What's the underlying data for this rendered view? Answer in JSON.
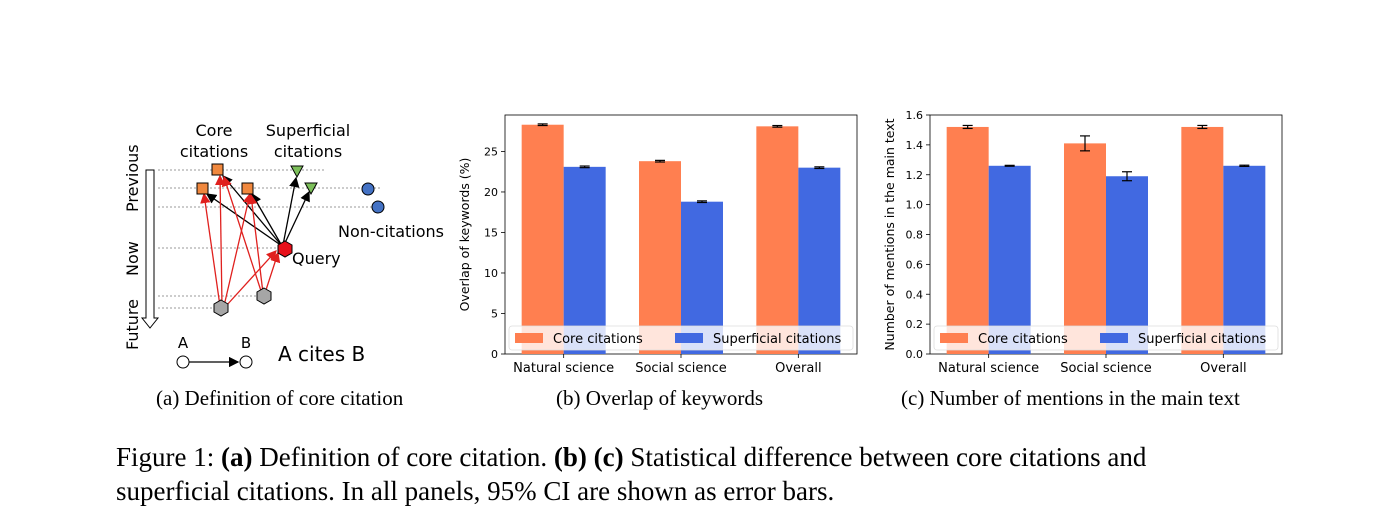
{
  "panel_a": {
    "labels": {
      "core": [
        "Core",
        "citations"
      ],
      "superficial": [
        "Superficial",
        "citations"
      ],
      "noncitations": "Non-citations",
      "query": "Query",
      "previous": "Previous",
      "now": "Now",
      "future": "Future",
      "node_a": "A",
      "node_b": "B",
      "a_cites_b": "A cites B"
    },
    "caption": "(a) Definition of core citation",
    "colors": {
      "core": "#f0883e",
      "superficial": "#7cbf5a",
      "noncitation": "#4472c4",
      "query": "#e8101a",
      "future": "#a6a6a6",
      "red_edge": "#e0201e"
    }
  },
  "panel_b": {
    "caption": "(b) Overlap of keywords"
  },
  "panel_c": {
    "caption": "(c) Number of mentions in the main text"
  },
  "figure_caption": {
    "prefix": "Figure 1:",
    "a": "(a)",
    "a_text": "Definition of core citation.",
    "bc": "(b) (c)",
    "bc_text": "Statistical difference between core citations and",
    "line2": "superficial citations. In all panels, 95% CI are shown as error bars."
  },
  "chart_data": [
    {
      "type": "bar",
      "categories": [
        "Natural science",
        "Social science",
        "Overall"
      ],
      "series": [
        {
          "name": "Core citations",
          "values": [
            28.3,
            23.8,
            28.1
          ],
          "ci": [
            0.1,
            0.1,
            0.1
          ],
          "color": "#ff7f50"
        },
        {
          "name": "Superficial citations",
          "values": [
            23.1,
            18.8,
            23.0
          ],
          "ci": [
            0.1,
            0.1,
            0.1
          ],
          "color": "#4169e1"
        }
      ],
      "ylabel": "Overlap of keywords (%)",
      "ylim": [
        0,
        29.5
      ],
      "yticks": [
        0,
        5,
        10,
        15,
        20,
        25
      ],
      "legend": "lower center"
    },
    {
      "type": "bar",
      "categories": [
        "Natural science",
        "Social science",
        "Overall"
      ],
      "series": [
        {
          "name": "Core citations",
          "values": [
            1.52,
            1.41,
            1.52
          ],
          "ci": [
            0.01,
            0.05,
            0.01
          ],
          "color": "#ff7f50"
        },
        {
          "name": "Superficial citations",
          "values": [
            1.26,
            1.19,
            1.26
          ],
          "ci": [
            0.003,
            0.03,
            0.004
          ],
          "color": "#4169e1"
        }
      ],
      "ylabel": "Number of mentions in the main text",
      "ylim": [
        0,
        1.6
      ],
      "yticks": [
        "0.0",
        "0.2",
        "0.4",
        "0.6",
        "0.8",
        "1.0",
        "1.2",
        "1.4",
        "1.6"
      ],
      "legend": "lower center"
    }
  ]
}
